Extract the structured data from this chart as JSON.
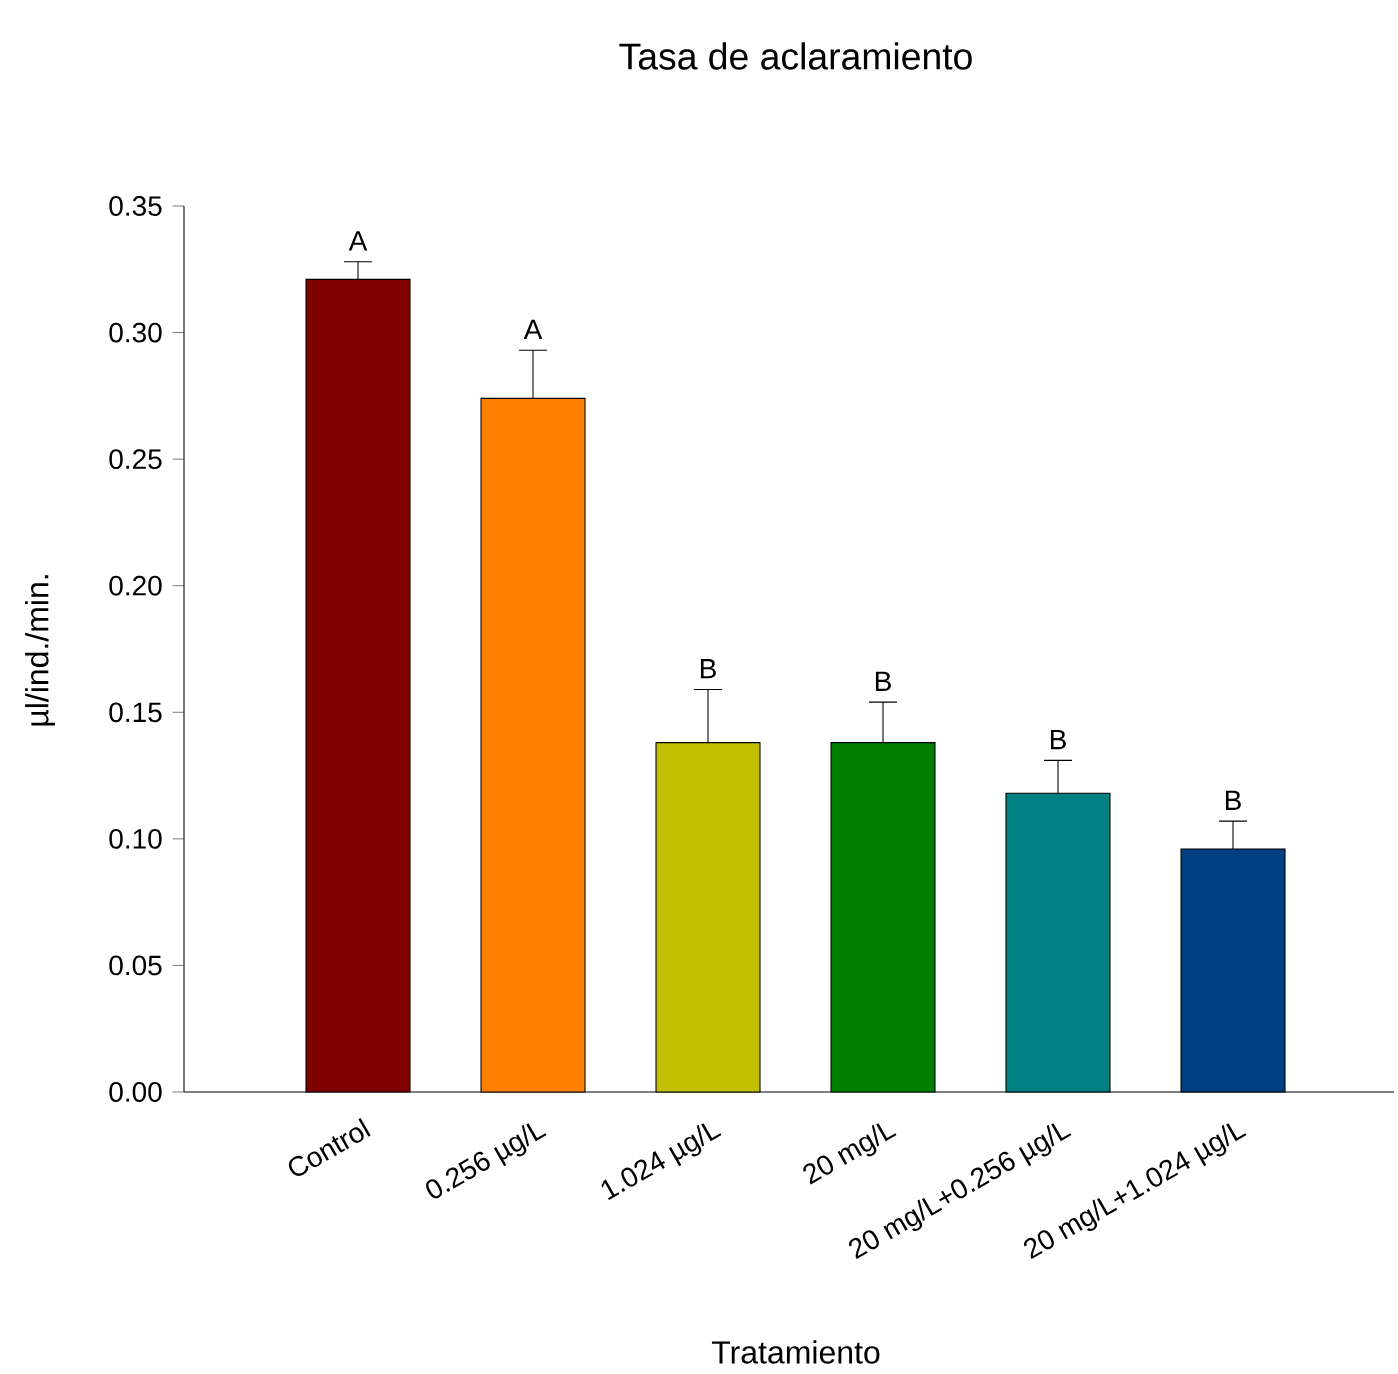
{
  "chart_data": {
    "type": "bar",
    "title": "Tasa de aclaramiento",
    "xlabel": "Tratamiento",
    "ylabel": "µl/ind./min.",
    "categories": [
      "Control",
      "0.256 µg/L",
      "1.024 µg/L",
      "20 mg/L",
      "20 mg/L+0.256 µg/L",
      "20 mg/L+1.024 µg/L"
    ],
    "values": [
      0.321,
      0.274,
      0.138,
      0.138,
      0.118,
      0.096
    ],
    "errors": [
      [
        0.321,
        0.328
      ],
      [
        0.274,
        0.293
      ],
      [
        0.138,
        0.159
      ],
      [
        0.138,
        0.154
      ],
      [
        0.118,
        0.131
      ],
      [
        0.096,
        0.107
      ]
    ],
    "colors": [
      "#800000",
      "#ff8000",
      "#c0c000",
      "#008000",
      "#008080",
      "#004080"
    ],
    "ylim": [
      0,
      0.35
    ],
    "yticks": [
      {
        "value": 0,
        "label": "0.00"
      },
      {
        "value": 0.05,
        "label": "0.05"
      },
      {
        "value": 0.1,
        "label": "0.10"
      },
      {
        "value": 0.15,
        "label": "0.15"
      },
      {
        "value": 0.2,
        "label": "0.20"
      },
      {
        "value": 0.25,
        "label": "0.25"
      },
      {
        "value": 0.3,
        "label": "0.30"
      },
      {
        "value": 0.35,
        "label": "0.35"
      }
    ],
    "grid": false,
    "annotations": [
      {
        "text": "A",
        "x": "Control",
        "y": 0.328
      },
      {
        "text": "A",
        "x": "0.256 µg/L",
        "y": 0.293
      },
      {
        "text": "B",
        "x": "1.024 µg/L",
        "y": 0.159
      },
      {
        "text": "B",
        "x": "20 mg/L",
        "y": 0.154
      },
      {
        "text": "B",
        "x": "20 mg/L+0.256 µg/L",
        "y": 0.131
      },
      {
        "text": "B",
        "x": "20 mg/L+1.024 µg/L",
        "y": 0.107
      }
    ]
  }
}
